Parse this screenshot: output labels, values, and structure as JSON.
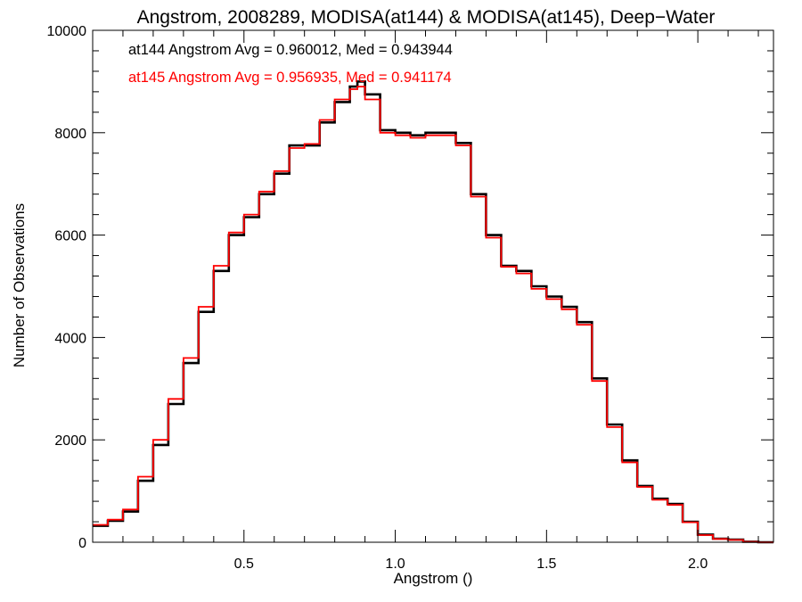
{
  "chart_data": {
    "type": "line",
    "title": "Angstrom, 2008289, MODISA(at144) & MODISA(at145), Deep−Water",
    "xlabel": "Angstrom ()",
    "ylabel": "Number of Observations",
    "xlim": [
      0.0,
      2.25
    ],
    "ylim": [
      0,
      10000
    ],
    "xticks": [
      0.5,
      1.0,
      1.5,
      2.0
    ],
    "xtick_labels": [
      "0.5",
      "1.0",
      "1.5",
      "2.0"
    ],
    "yticks": [
      0,
      2000,
      4000,
      6000,
      8000,
      10000
    ],
    "ytick_labels": [
      "0",
      "2000",
      "4000",
      "6000",
      "8000",
      "10000"
    ],
    "grid": false,
    "legend_position": "top-left",
    "annotations": [
      {
        "text": "at144 Angstrom Avg = 0.960012, Med = 0.943944",
        "color": "#000000"
      },
      {
        "text": "at145 Angstrom Avg = 0.956935, Med = 0.941174",
        "color": "#ff0000"
      }
    ],
    "series": [
      {
        "color": "#000000",
        "x": [
          0.0,
          0.05,
          0.1,
          0.15,
          0.2,
          0.25,
          0.3,
          0.35,
          0.4,
          0.45,
          0.5,
          0.55,
          0.6,
          0.65,
          0.7,
          0.75,
          0.8,
          0.85,
          0.875,
          0.9,
          0.95,
          1.0,
          1.05,
          1.1,
          1.15,
          1.2,
          1.25,
          1.3,
          1.35,
          1.4,
          1.45,
          1.5,
          1.55,
          1.6,
          1.65,
          1.7,
          1.75,
          1.8,
          1.85,
          1.9,
          1.95,
          2.0,
          2.05,
          2.1,
          2.15,
          2.2,
          2.25
        ],
        "y": [
          320,
          420,
          600,
          1200,
          1900,
          2700,
          3500,
          4500,
          5300,
          6000,
          6350,
          6800,
          7200,
          7750,
          7750,
          8200,
          8600,
          8900,
          9000,
          8750,
          8050,
          8000,
          7950,
          8000,
          8000,
          7800,
          6800,
          6000,
          5400,
          5300,
          5000,
          4800,
          4600,
          4300,
          3200,
          2300,
          1600,
          1100,
          850,
          750,
          400,
          150,
          70,
          50,
          10,
          0,
          0
        ]
      },
      {
        "color": "#ff0000",
        "x": [
          0.0,
          0.05,
          0.1,
          0.15,
          0.2,
          0.25,
          0.3,
          0.35,
          0.4,
          0.45,
          0.5,
          0.55,
          0.6,
          0.65,
          0.7,
          0.75,
          0.8,
          0.85,
          0.875,
          0.9,
          0.95,
          1.0,
          1.05,
          1.1,
          1.15,
          1.2,
          1.25,
          1.3,
          1.35,
          1.4,
          1.45,
          1.5,
          1.55,
          1.6,
          1.65,
          1.7,
          1.75,
          1.8,
          1.85,
          1.9,
          1.95,
          2.0,
          2.05,
          2.1,
          2.15,
          2.2,
          2.25
        ],
        "y": [
          340,
          440,
          640,
          1280,
          2000,
          2800,
          3600,
          4600,
          5400,
          6050,
          6400,
          6850,
          7250,
          7700,
          7780,
          8250,
          8650,
          8850,
          8900,
          8650,
          8000,
          7950,
          7900,
          7950,
          7950,
          7750,
          6750,
          5950,
          5380,
          5250,
          4950,
          4750,
          4550,
          4250,
          3150,
          2250,
          1560,
          1080,
          830,
          730,
          390,
          140,
          65,
          45,
          8,
          0,
          0
        ]
      }
    ]
  }
}
